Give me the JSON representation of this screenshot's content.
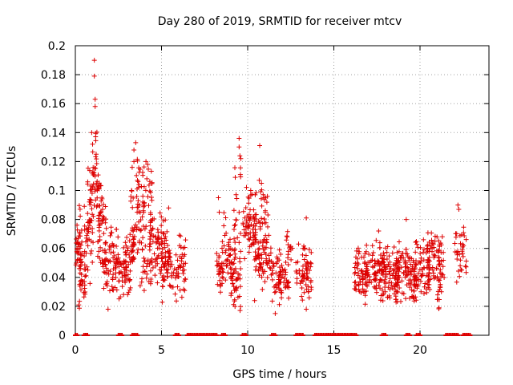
{
  "chart_data": {
    "type": "scatter",
    "title": "Day 280 of 2019, SRMTID for receiver mtcv",
    "xlabel": "GPS time / hours",
    "ylabel": "SRMTID / TECUs",
    "xlim": [
      0,
      24
    ],
    "ylim": [
      0,
      0.2
    ],
    "xticks": [
      0,
      5,
      10,
      15,
      20
    ],
    "yticks": [
      0,
      0.02,
      0.04,
      0.06,
      0.08,
      0.1,
      0.12,
      0.14,
      0.16,
      0.18,
      0.2
    ],
    "ytick_labels": [
      "0",
      "0.02",
      "0.04",
      "0.06",
      "0.08",
      "0.1",
      "0.12",
      "0.14",
      "0.16",
      "0.18",
      "0.2"
    ],
    "grid": true,
    "marker": "+",
    "color": "#dd0000",
    "clusters": [
      {
        "x0": 0.0,
        "x1": 0.4,
        "base": 0.06,
        "spread": 0.015,
        "n": 45
      },
      {
        "x0": 0.2,
        "x1": 0.6,
        "base": 0.035,
        "spread": 0.01,
        "n": 20
      },
      {
        "x0": 0.5,
        "x1": 1.0,
        "base": 0.065,
        "spread": 0.02,
        "n": 40
      },
      {
        "x0": 0.7,
        "x1": 1.5,
        "base": 0.095,
        "spread": 0.02,
        "n": 50
      },
      {
        "x0": 1.0,
        "x1": 1.3,
        "base": 0.12,
        "spread": 0.02,
        "n": 14
      },
      {
        "x0": 1.3,
        "x1": 1.8,
        "base": 0.075,
        "spread": 0.02,
        "n": 45
      },
      {
        "x0": 1.6,
        "x1": 2.5,
        "base": 0.05,
        "spread": 0.015,
        "n": 70
      },
      {
        "x0": 2.5,
        "x1": 3.2,
        "base": 0.04,
        "spread": 0.012,
        "n": 40
      },
      {
        "x0": 2.8,
        "x1": 3.5,
        "base": 0.06,
        "spread": 0.013,
        "n": 35
      },
      {
        "x0": 3.2,
        "x1": 4.0,
        "base": 0.075,
        "spread": 0.025,
        "n": 55
      },
      {
        "x0": 3.5,
        "x1": 4.5,
        "base": 0.1,
        "spread": 0.018,
        "n": 40
      },
      {
        "x0": 3.8,
        "x1": 4.4,
        "base": 0.045,
        "spread": 0.01,
        "n": 22
      },
      {
        "x0": 4.3,
        "x1": 5.5,
        "base": 0.06,
        "spread": 0.016,
        "n": 90
      },
      {
        "x0": 5.0,
        "x1": 6.0,
        "base": 0.045,
        "spread": 0.012,
        "n": 55
      },
      {
        "x0": 6.0,
        "x1": 6.4,
        "base": 0.05,
        "spread": 0.013,
        "n": 30
      },
      {
        "x0": 8.2,
        "x1": 8.6,
        "base": 0.045,
        "spread": 0.013,
        "n": 25
      },
      {
        "x0": 8.5,
        "x1": 9.3,
        "base": 0.055,
        "spread": 0.015,
        "n": 50
      },
      {
        "x0": 9.0,
        "x1": 9.6,
        "base": 0.035,
        "spread": 0.012,
        "n": 40
      },
      {
        "x0": 9.2,
        "x1": 9.6,
        "base": 0.085,
        "spread": 0.035,
        "n": 22
      },
      {
        "x0": 9.7,
        "x1": 10.5,
        "base": 0.075,
        "spread": 0.017,
        "n": 65
      },
      {
        "x0": 10.3,
        "x1": 11.2,
        "base": 0.08,
        "spread": 0.022,
        "n": 55
      },
      {
        "x0": 10.6,
        "x1": 11.4,
        "base": 0.055,
        "spread": 0.013,
        "n": 45
      },
      {
        "x0": 11.4,
        "x1": 12.4,
        "base": 0.04,
        "spread": 0.011,
        "n": 70
      },
      {
        "x0": 12.2,
        "x1": 12.6,
        "base": 0.06,
        "spread": 0.008,
        "n": 14
      },
      {
        "x0": 12.8,
        "x1": 13.7,
        "base": 0.042,
        "spread": 0.015,
        "n": 65
      },
      {
        "x0": 16.2,
        "x1": 17.0,
        "base": 0.042,
        "spread": 0.011,
        "n": 60
      },
      {
        "x0": 16.8,
        "x1": 18.0,
        "base": 0.045,
        "spread": 0.012,
        "n": 90
      },
      {
        "x0": 17.8,
        "x1": 18.8,
        "base": 0.043,
        "spread": 0.013,
        "n": 80
      },
      {
        "x0": 18.6,
        "x1": 19.8,
        "base": 0.042,
        "spread": 0.014,
        "n": 95
      },
      {
        "x0": 19.6,
        "x1": 20.6,
        "base": 0.045,
        "spread": 0.013,
        "n": 75
      },
      {
        "x0": 20.4,
        "x1": 21.4,
        "base": 0.053,
        "spread": 0.013,
        "n": 70
      },
      {
        "x0": 21.0,
        "x1": 21.3,
        "base": 0.03,
        "spread": 0.008,
        "n": 12
      },
      {
        "x0": 22.0,
        "x1": 22.7,
        "base": 0.06,
        "spread": 0.012,
        "n": 35
      }
    ],
    "outliers": [
      {
        "x": 1.1,
        "y": 0.19
      },
      {
        "x": 1.1,
        "y": 0.179
      },
      {
        "x": 1.15,
        "y": 0.163
      },
      {
        "x": 1.15,
        "y": 0.158
      },
      {
        "x": 0.95,
        "y": 0.14
      },
      {
        "x": 1.0,
        "y": 0.132
      },
      {
        "x": 3.5,
        "y": 0.133
      },
      {
        "x": 3.4,
        "y": 0.128
      },
      {
        "x": 3.3,
        "y": 0.116
      },
      {
        "x": 3.4,
        "y": 0.12
      },
      {
        "x": 4.1,
        "y": 0.12
      },
      {
        "x": 4.2,
        "y": 0.118
      },
      {
        "x": 9.5,
        "y": 0.136
      },
      {
        "x": 9.5,
        "y": 0.13
      },
      {
        "x": 9.55,
        "y": 0.124
      },
      {
        "x": 9.6,
        "y": 0.122
      },
      {
        "x": 10.7,
        "y": 0.131
      },
      {
        "x": 10.8,
        "y": 0.105
      },
      {
        "x": 8.3,
        "y": 0.095
      },
      {
        "x": 8.35,
        "y": 0.085
      },
      {
        "x": 13.4,
        "y": 0.081
      },
      {
        "x": 22.2,
        "y": 0.09
      },
      {
        "x": 22.25,
        "y": 0.087
      },
      {
        "x": 19.2,
        "y": 0.08
      },
      {
        "x": 10.4,
        "y": 0.024
      },
      {
        "x": 1.9,
        "y": 0.018
      },
      {
        "x": 0.2,
        "y": 0.021
      },
      {
        "x": 13.4,
        "y": 0.018
      },
      {
        "x": 21.1,
        "y": 0.019
      },
      {
        "x": 17.6,
        "y": 0.072
      },
      {
        "x": 20.2,
        "y": 0.066
      },
      {
        "x": 11.6,
        "y": 0.015
      }
    ],
    "zero_segments": [
      [
        0.0,
        0.1
      ],
      [
        0.5,
        0.75
      ],
      [
        2.5,
        2.7
      ],
      [
        3.3,
        3.6
      ],
      [
        5.8,
        6.0
      ],
      [
        6.5,
        8.2
      ],
      [
        8.5,
        8.7
      ],
      [
        9.7,
        9.9
      ],
      [
        11.4,
        11.6
      ],
      [
        12.8,
        13.2
      ],
      [
        13.9,
        16.3
      ],
      [
        17.8,
        18.0
      ],
      [
        19.2,
        19.4
      ],
      [
        19.8,
        20.0
      ],
      [
        21.5,
        22.2
      ],
      [
        22.5,
        22.9
      ]
    ]
  }
}
